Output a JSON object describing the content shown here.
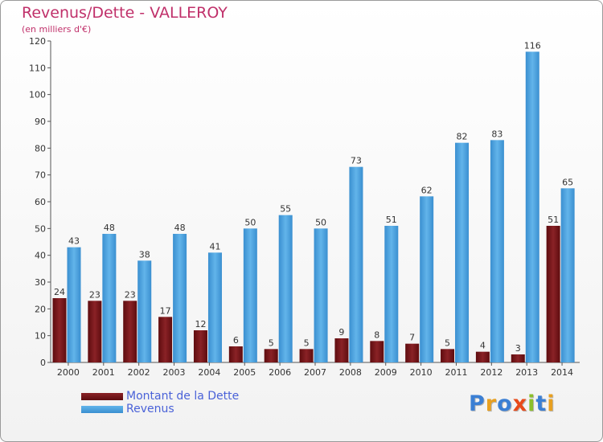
{
  "title": "Revenus/Dette - VALLEROY",
  "subtitle": "(en milliers d'€)",
  "legend": {
    "dette": "Montant de la Dette",
    "revenus": "Revenus"
  },
  "logo_text": "Proxiti",
  "colors": {
    "dette": "#7a1518",
    "revenus": "#4ea6e2",
    "title": "#c0306a",
    "legend_text": "#4a62d8"
  },
  "chart_data": {
    "type": "bar",
    "title": "Revenus/Dette - VALLEROY",
    "subtitle": "(en milliers d'€)",
    "xlabel": "",
    "ylabel": "",
    "ylim": [
      0,
      120
    ],
    "yticks": [
      0,
      10,
      20,
      30,
      40,
      50,
      60,
      70,
      80,
      90,
      100,
      110,
      120
    ],
    "grid": false,
    "legend_position": "bottom-left",
    "categories": [
      "2000",
      "2001",
      "2002",
      "2003",
      "2004",
      "2005",
      "2006",
      "2007",
      "2008",
      "2009",
      "2010",
      "2011",
      "2012",
      "2013",
      "2014"
    ],
    "series": [
      {
        "name": "Montant de la Dette",
        "values": [
          24,
          23,
          23,
          17,
          12,
          6,
          5,
          5,
          9,
          8,
          7,
          5,
          4,
          3,
          51
        ]
      },
      {
        "name": "Revenus",
        "values": [
          43,
          48,
          38,
          48,
          41,
          50,
          55,
          50,
          73,
          51,
          62,
          82,
          83,
          116,
          65
        ]
      }
    ]
  }
}
